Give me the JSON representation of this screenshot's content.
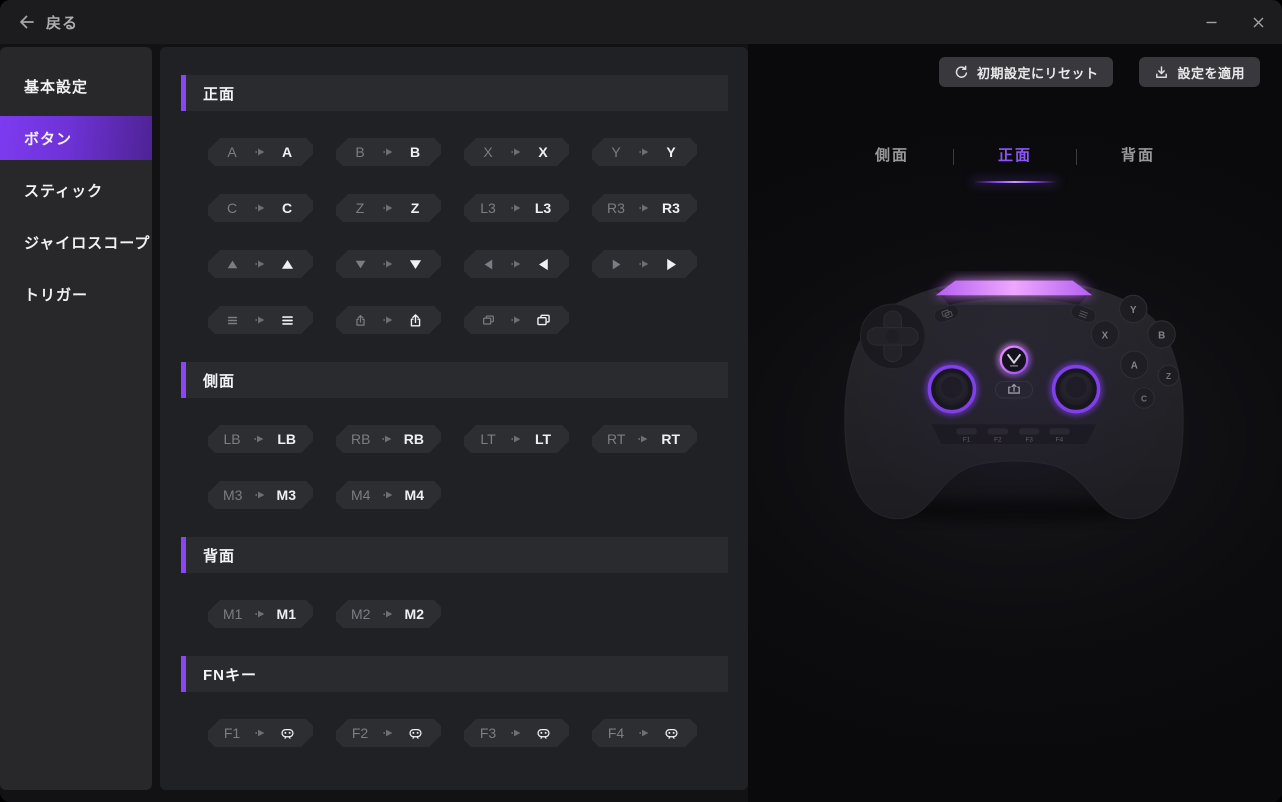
{
  "titlebar": {
    "back_label": "戻る",
    "back_icon": "arrow-left"
  },
  "window_controls": [
    {
      "key": "minimize",
      "icon": "minimize"
    },
    {
      "key": "close",
      "icon": "close"
    }
  ],
  "sidebar": {
    "items": [
      {
        "key": "basic",
        "label": "基本設定",
        "active": false
      },
      {
        "key": "buttons",
        "label": "ボタン",
        "active": true
      },
      {
        "key": "stick",
        "label": "スティック",
        "active": false
      },
      {
        "key": "gyroscope",
        "label": "ジャイロスコープ",
        "active": false
      },
      {
        "key": "trigger",
        "label": "トリガー",
        "active": false
      }
    ]
  },
  "mappings": {
    "sections": [
      {
        "key": "front",
        "title": "正面",
        "rows": [
          [
            {
              "from": {
                "text": "A"
              },
              "to": {
                "text": "A"
              }
            },
            {
              "from": {
                "text": "B"
              },
              "to": {
                "text": "B"
              }
            },
            {
              "from": {
                "text": "X"
              },
              "to": {
                "text": "X"
              }
            },
            {
              "from": {
                "text": "Y"
              },
              "to": {
                "text": "Y"
              }
            }
          ],
          [
            {
              "from": {
                "text": "C"
              },
              "to": {
                "text": "C"
              }
            },
            {
              "from": {
                "text": "Z"
              },
              "to": {
                "text": "Z"
              }
            },
            {
              "from": {
                "text": "L3"
              },
              "to": {
                "text": "L3"
              }
            },
            {
              "from": {
                "text": "R3"
              },
              "to": {
                "text": "R3"
              }
            }
          ],
          [
            {
              "from": {
                "icon": "triangle-up"
              },
              "to": {
                "icon": "triangle-up"
              }
            },
            {
              "from": {
                "icon": "triangle-down"
              },
              "to": {
                "icon": "triangle-down"
              }
            },
            {
              "from": {
                "icon": "triangle-left"
              },
              "to": {
                "icon": "triangle-left"
              }
            },
            {
              "from": {
                "icon": "triangle-right"
              },
              "to": {
                "icon": "triangle-right"
              }
            }
          ],
          [
            {
              "from": {
                "icon": "menu"
              },
              "to": {
                "icon": "menu"
              }
            },
            {
              "from": {
                "icon": "share"
              },
              "to": {
                "icon": "share"
              }
            },
            {
              "from": {
                "icon": "overlap"
              },
              "to": {
                "icon": "overlap"
              }
            }
          ]
        ]
      },
      {
        "key": "side",
        "title": "側面",
        "rows": [
          [
            {
              "from": {
                "text": "LB"
              },
              "to": {
                "text": "LB"
              }
            },
            {
              "from": {
                "text": "RB"
              },
              "to": {
                "text": "RB"
              }
            },
            {
              "from": {
                "text": "LT"
              },
              "to": {
                "text": "LT"
              }
            },
            {
              "from": {
                "text": "RT"
              },
              "to": {
                "text": "RT"
              }
            }
          ],
          [
            {
              "from": {
                "text": "M3"
              },
              "to": {
                "text": "M3"
              }
            },
            {
              "from": {
                "text": "M4"
              },
              "to": {
                "text": "M4"
              }
            }
          ]
        ]
      },
      {
        "key": "back",
        "title": "背面",
        "rows": [
          [
            {
              "from": {
                "text": "M1"
              },
              "to": {
                "text": "M1"
              }
            },
            {
              "from": {
                "text": "M2"
              },
              "to": {
                "text": "M2"
              }
            }
          ]
        ]
      },
      {
        "key": "fn",
        "title": "FNキー",
        "rows": [
          [
            {
              "from": {
                "text": "F1"
              },
              "to": {
                "icon": "gamepad"
              }
            },
            {
              "from": {
                "text": "F2"
              },
              "to": {
                "icon": "gamepad"
              }
            },
            {
              "from": {
                "text": "F3"
              },
              "to": {
                "icon": "gamepad"
              }
            },
            {
              "from": {
                "text": "F4"
              },
              "to": {
                "icon": "gamepad"
              }
            }
          ]
        ]
      }
    ]
  },
  "preview": {
    "reset_button": {
      "label": "初期設定にリセット",
      "icon": "reset"
    },
    "apply_button": {
      "label": "設定を適用",
      "icon": "download"
    },
    "tabs": [
      {
        "key": "side",
        "label": "側面",
        "active": false
      },
      {
        "key": "front",
        "label": "正面",
        "active": true
      },
      {
        "key": "back",
        "label": "背面",
        "active": false
      }
    ],
    "controller": {
      "face_buttons": [
        "Y",
        "X",
        "B",
        "A",
        "Z",
        "C"
      ],
      "fn_buttons": [
        "F1",
        "F2",
        "F3",
        "F4"
      ]
    }
  },
  "colors": {
    "accent": "#8b45f6",
    "sidebar_active_start": "#7d3bf0",
    "sidebar_active_end": "#4e2394",
    "tab_active": "#8b55f7",
    "led": "#e39bfa",
    "stick_ring": "#7a39e8"
  }
}
